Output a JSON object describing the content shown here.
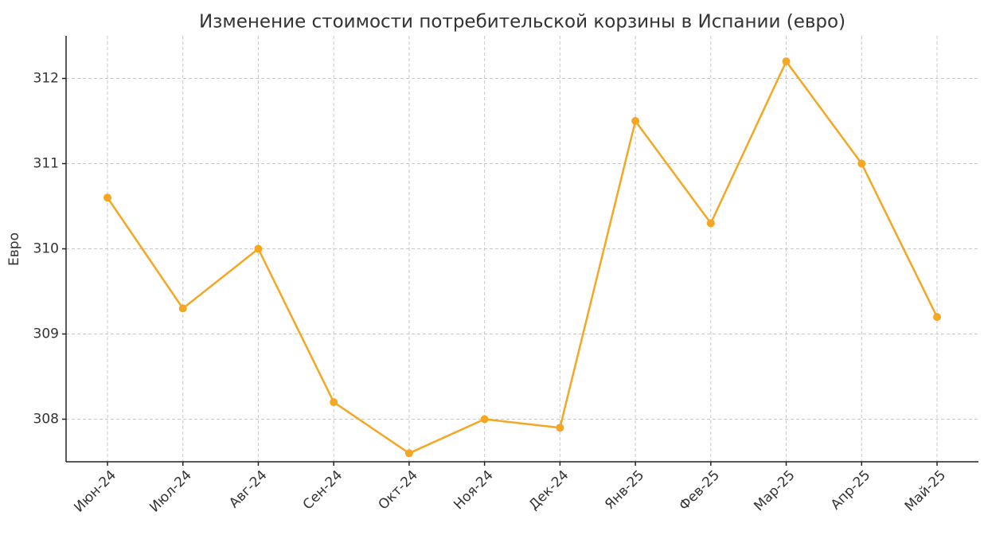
{
  "chart_data": {
    "type": "line",
    "title": "Изменение стоимости потребительской корзины в Испании (евро)",
    "y_label": "Евро",
    "categories": [
      "Июн-24",
      "Июл-24",
      "Авг-24",
      "Сен-24",
      "Окт-24",
      "Ноя-24",
      "Дек-24",
      "Янв-25",
      "Фев-25",
      "Мар-25",
      "Апр-25",
      "Май-25"
    ],
    "values": [
      310.6,
      309.3,
      310.0,
      308.2,
      307.6,
      308.0,
      307.9,
      311.5,
      310.3,
      312.2,
      311.0,
      309.2
    ],
    "color": "#f5a623",
    "ylim": [
      307.5,
      312.5
    ],
    "yticks": [
      308,
      309,
      310,
      311,
      312
    ],
    "grid": true
  }
}
